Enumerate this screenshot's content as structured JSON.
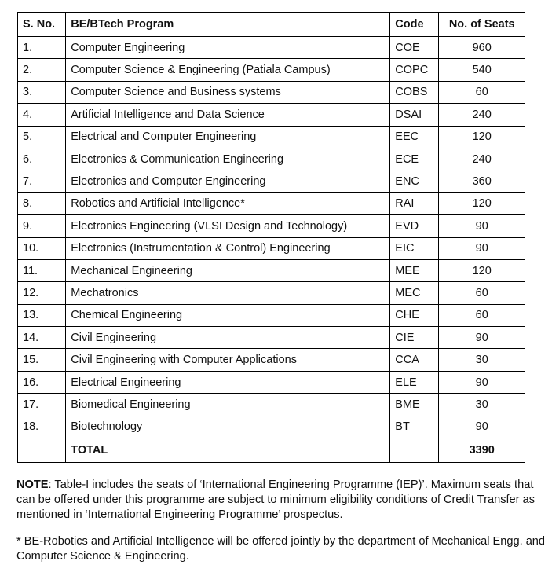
{
  "table": {
    "header": [
      "S. No.",
      "BE/BTech Program",
      "Code",
      "No. of Seats"
    ],
    "rows": [
      [
        "1.",
        "Computer Engineering",
        "COE",
        960
      ],
      [
        "2.",
        "Computer Science & Engineering (Patiala Campus)",
        "COPC",
        540
      ],
      [
        "3.",
        "Computer Science and Business systems",
        "COBS",
        60
      ],
      [
        "4.",
        "Artificial Intelligence and Data Science",
        "DSAI",
        240
      ],
      [
        "5.",
        "Electrical and Computer Engineering",
        "EEC",
        120
      ],
      [
        "6.",
        "Electronics & Communication Engineering",
        "ECE",
        240
      ],
      [
        "7.",
        "Electronics and Computer Engineering",
        "ENC",
        360
      ],
      [
        "8.",
        "Robotics and Artificial Intelligence*",
        "RAI",
        120
      ],
      [
        "9.",
        "Electronics Engineering (VLSI Design and Technology)",
        "EVD",
        90
      ],
      [
        "10.",
        "Electronics (Instrumentation & Control) Engineering",
        "EIC",
        90
      ],
      [
        "11.",
        "Mechanical Engineering",
        "MEE",
        120
      ],
      [
        "12.",
        "Mechatronics",
        "MEC",
        60
      ],
      [
        "13.",
        "Chemical Engineering",
        "CHE",
        60
      ],
      [
        "14.",
        "Civil Engineering",
        "CIE",
        90
      ],
      [
        "15.",
        "Civil Engineering with Computer Applications",
        "CCA",
        30
      ],
      [
        "16.",
        "Electrical Engineering",
        "ELE",
        90
      ],
      [
        "17.",
        "Biomedical Engineering",
        "BME",
        30
      ],
      [
        "18.",
        "Biotechnology",
        "BT",
        90
      ]
    ],
    "total": {
      "label": "TOTAL",
      "value": 3390
    }
  },
  "note": {
    "label": "NOTE",
    "text": ": Table-I includes the seats of ‘International Engineering Programme (IEP)’. Maximum seats that can be offered under this programme are subject to minimum eligibility conditions of Credit Transfer as mentioned in ‘International Engineering Programme’ prospectus."
  },
  "footnote": "* BE-Robotics and Artificial Intelligence will be offered jointly by the department of Mechanical Engg. and Computer Science & Engineering."
}
